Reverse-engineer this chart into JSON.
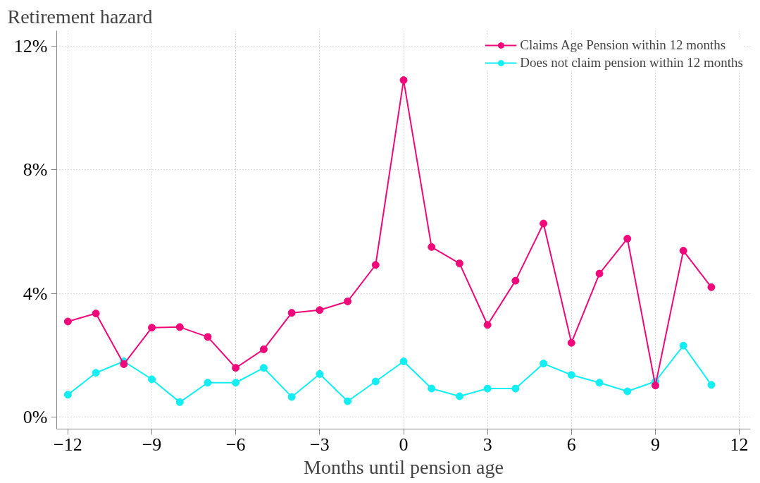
{
  "chart_data": {
    "type": "line",
    "xlabel": "Months until pension age",
    "ylabel": "Retirement hazard",
    "x": [
      -12,
      -11,
      -10,
      -9,
      -8,
      -7,
      -6,
      -5,
      -4,
      -3,
      -2,
      -1,
      0,
      1,
      2,
      3,
      4,
      5,
      6,
      7,
      8,
      9,
      10,
      11
    ],
    "series": [
      {
        "name": "Claims Age Pension within 12 months",
        "color": "#f0087a",
        "values": [
          3.09,
          3.35,
          1.71,
          2.89,
          2.91,
          2.59,
          1.59,
          2.19,
          3.37,
          3.46,
          3.74,
          4.92,
          10.9,
          5.5,
          4.97,
          2.98,
          4.41,
          6.26,
          2.4,
          4.64,
          5.77,
          1.02,
          5.38,
          4.2
        ]
      },
      {
        "name": "Does not claim pension within 12 months",
        "color": "#12eef2",
        "values": [
          0.72,
          1.43,
          1.8,
          1.22,
          0.48,
          1.11,
          1.11,
          1.59,
          0.65,
          1.39,
          0.51,
          1.15,
          1.8,
          0.92,
          0.67,
          0.92,
          0.92,
          1.73,
          1.36,
          1.11,
          0.83,
          1.15,
          2.31,
          1.04
        ]
      }
    ],
    "xlim": [
      -12.4,
      12.4
    ],
    "ylim": [
      -0.39,
      12.5
    ],
    "xticks": [
      -12,
      -9,
      -6,
      -3,
      0,
      3,
      6,
      9,
      12
    ],
    "yticks": [
      {
        "value": 0,
        "label": "0%"
      },
      {
        "value": 4,
        "label": "4%"
      },
      {
        "value": 8,
        "label": "8%"
      },
      {
        "value": 12,
        "label": "12%"
      }
    ],
    "grid": true,
    "legend": "top right",
    "marker": "circle",
    "line_style": "solid"
  }
}
